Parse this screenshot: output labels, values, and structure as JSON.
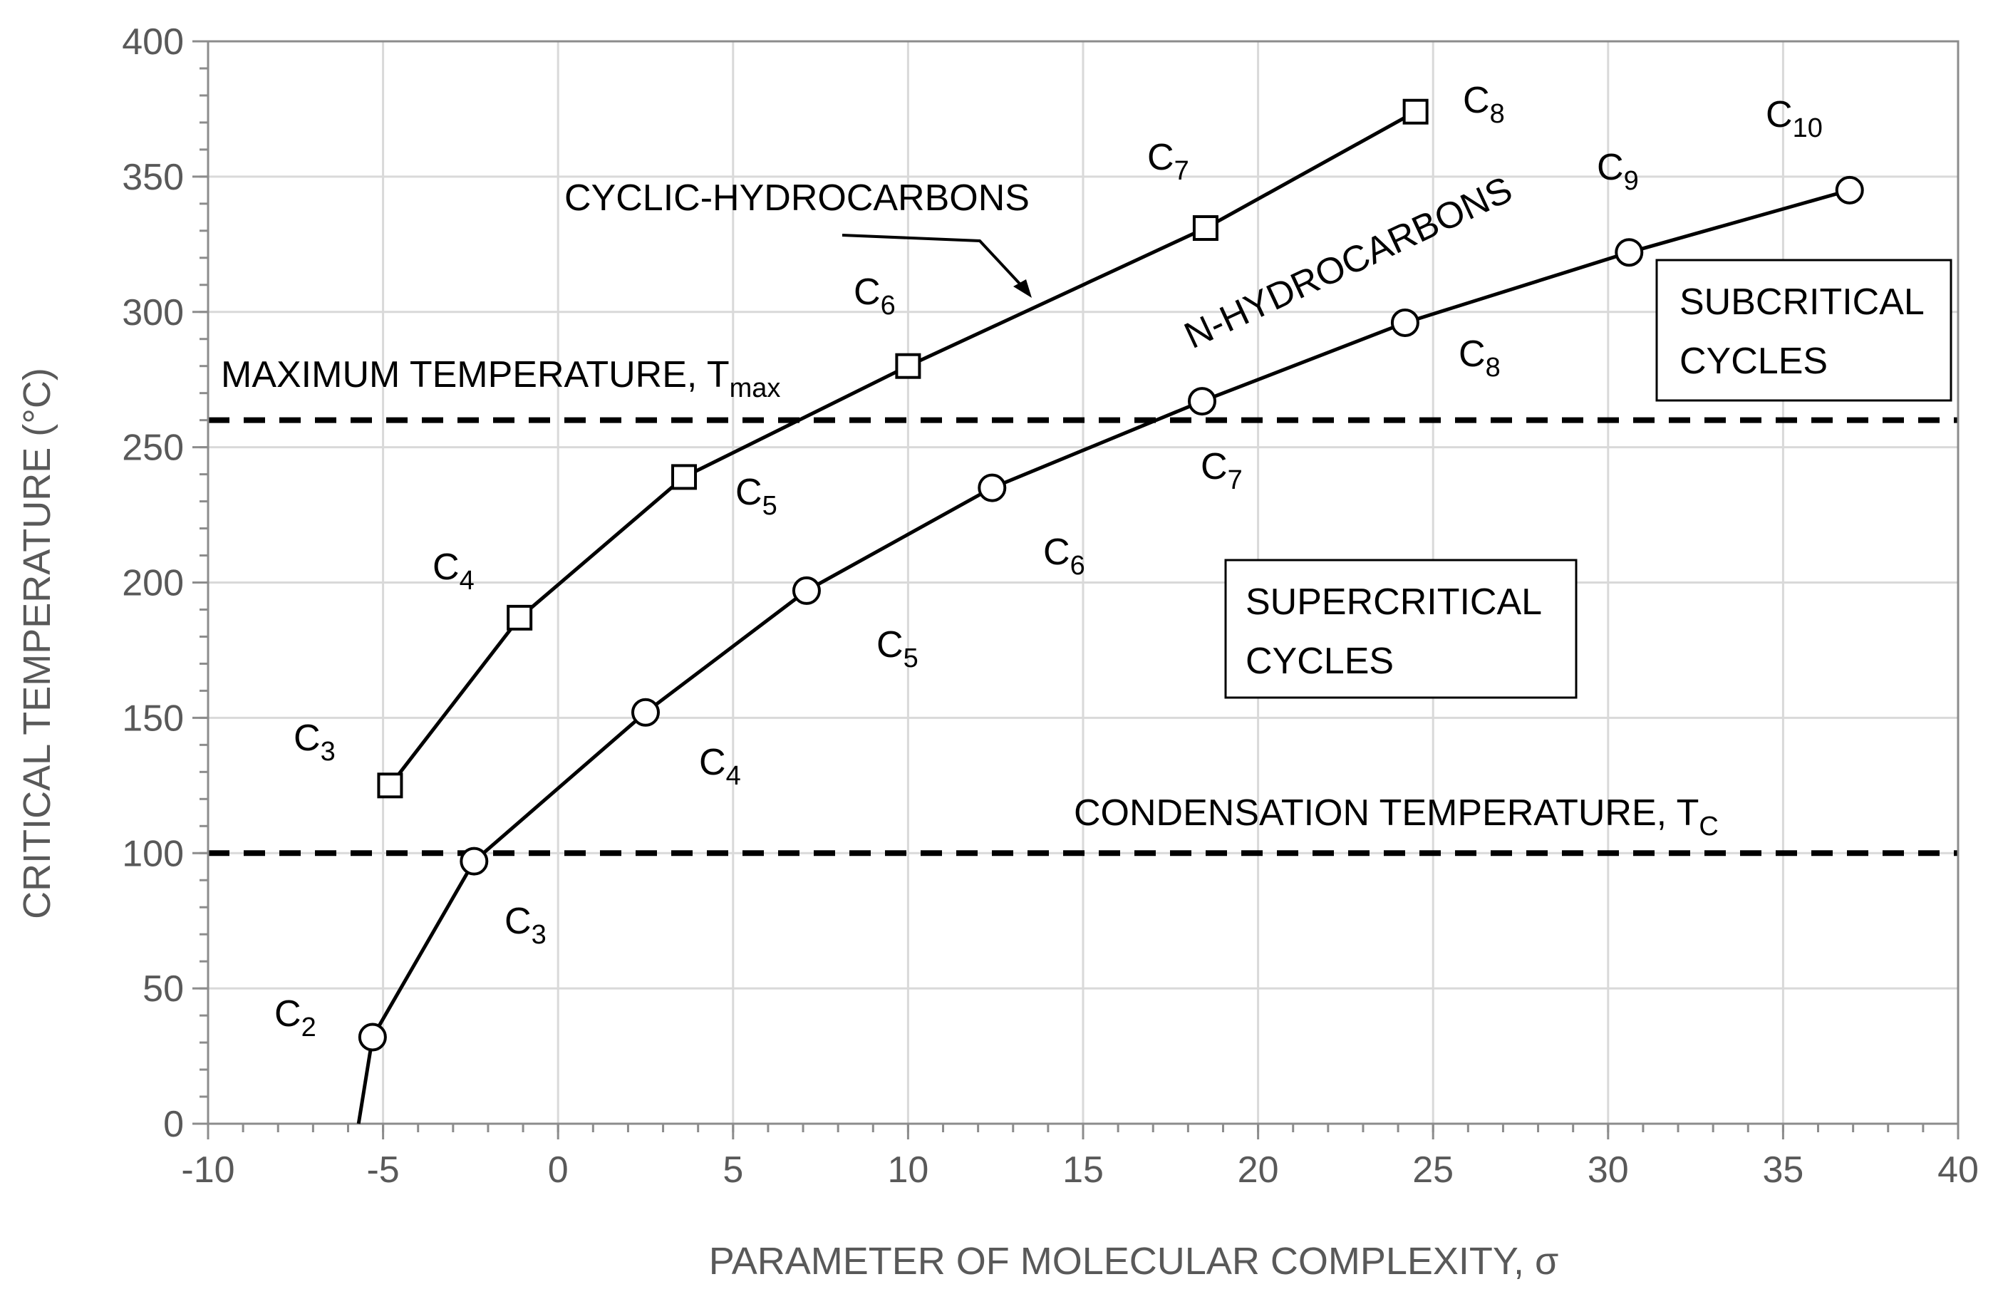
{
  "chart_data": {
    "type": "line",
    "title": "",
    "xlabel": "PARAMETER OF MOLECULAR COMPLEXITY, σ",
    "ylabel": "CRITICAL TEMPERATURE (°C)",
    "xlim": [
      -10,
      40
    ],
    "ylim": [
      0,
      400
    ],
    "xticks": [
      -10,
      -5,
      0,
      5,
      10,
      15,
      20,
      25,
      30,
      35,
      40
    ],
    "yticks": [
      0,
      50,
      100,
      150,
      200,
      250,
      300,
      350,
      400
    ],
    "grid": true,
    "series": [
      {
        "name": "CYCLIC-HYDROCARBONS",
        "marker": "square",
        "x": [
          -4.8,
          -1.1,
          3.6,
          10.0,
          18.5,
          24.5
        ],
        "y": [
          125,
          187,
          239,
          280,
          331,
          374
        ],
        "point_labels": [
          {
            "base": "C",
            "sub": "3"
          },
          {
            "base": "C",
            "sub": "4"
          },
          {
            "base": "C",
            "sub": "5"
          },
          {
            "base": "C",
            "sub": "6"
          },
          {
            "base": "C",
            "sub": "7"
          },
          {
            "base": "C",
            "sub": "8"
          }
        ]
      },
      {
        "name": "N-HYDROCARBONS",
        "marker": "circle",
        "x": [
          -5.3,
          -2.4,
          2.5,
          7.1,
          12.4,
          18.4,
          24.2,
          30.6,
          36.9
        ],
        "y": [
          32,
          97,
          152,
          197,
          235,
          267,
          296,
          322,
          345
        ],
        "line_extension": {
          "x": -5.7,
          "y": 0
        },
        "point_labels": [
          {
            "base": "C",
            "sub": "2"
          },
          {
            "base": "C",
            "sub": "3"
          },
          {
            "base": "C",
            "sub": "4"
          },
          {
            "base": "C",
            "sub": "5"
          },
          {
            "base": "C",
            "sub": "6"
          },
          {
            "base": "C",
            "sub": "7"
          },
          {
            "base": "C",
            "sub": "8"
          },
          {
            "base": "C",
            "sub": "9"
          },
          {
            "base": "C",
            "sub": "10"
          }
        ]
      }
    ],
    "reference_lines": [
      {
        "name": "MAXIMUM TEMPERATURE, T",
        "sub": "max",
        "y": 260,
        "style": "dashed"
      },
      {
        "name": "CONDENSATION TEMPERATURE, T",
        "sub": "C",
        "y": 100,
        "style": "dashed"
      }
    ],
    "annotations": {
      "cyclic_label": "CYCLIC-HYDROCARBONS",
      "n_label": "N-HYDROCARBONS",
      "subcritical_box": [
        "SUBCRITICAL",
        "CYCLES"
      ],
      "supercritical_box": [
        "SUPERCRITICAL",
        "CYCLES"
      ]
    }
  }
}
